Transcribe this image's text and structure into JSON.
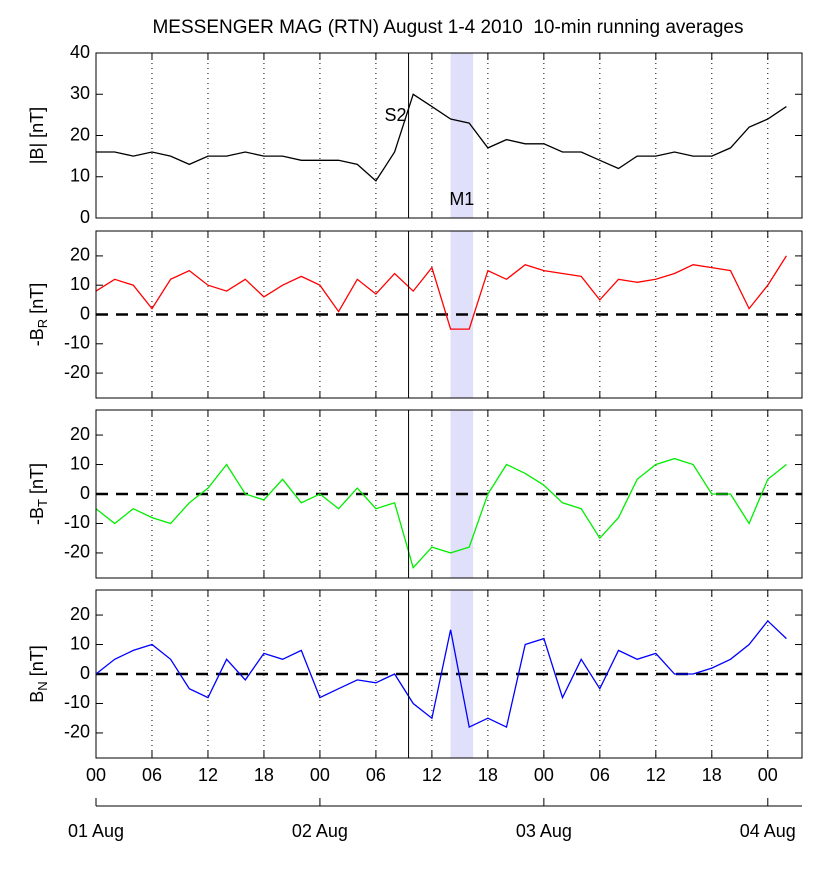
{
  "chart_data": [
    {
      "type": "line",
      "title": "MESSENGER MAG (RTN) August 1-4 2010  10-min running averages",
      "ylabel": [
        "|B| [nT]"
      ],
      "color": "#000000",
      "annotations": {
        "event": "S2",
        "interval": "M1"
      },
      "event_time": "2010-08-02T09:30",
      "interval": [
        "2010-08-02T14:00",
        "2010-08-02T16:25"
      ],
      "xlim": [
        "2010-08-01T00:00",
        "2010-08-04T03:40"
      ],
      "xticks": [
        "2010-08-01T00:00",
        "2010-08-01T06:00",
        "2010-08-01T12:00",
        "2010-08-01T18:00",
        "2010-08-02T00:00",
        "2010-08-02T06:00",
        "2010-08-02T12:00",
        "2010-08-02T18:00",
        "2010-08-03T00:00",
        "2010-08-03T06:00",
        "2010-08-03T12:00",
        "2010-08-03T18:00",
        "2010-08-04T00:00"
      ],
      "grid": true,
      "zero_line": false,
      "ylim": [
        0,
        40
      ],
      "yticks": [
        0,
        10,
        20,
        30,
        40
      ],
      "x": [
        "2010-08-01T00:00",
        "2010-08-01T02:00",
        "2010-08-01T04:00",
        "2010-08-01T06:00",
        "2010-08-01T08:00",
        "2010-08-01T10:00",
        "2010-08-01T12:00",
        "2010-08-01T14:00",
        "2010-08-01T16:00",
        "2010-08-01T18:00",
        "2010-08-01T20:00",
        "2010-08-01T22:00",
        "2010-08-02T00:00",
        "2010-08-02T02:00",
        "2010-08-02T04:00",
        "2010-08-02T06:00",
        "2010-08-02T08:00",
        "2010-08-02T10:00",
        "2010-08-02T12:00",
        "2010-08-02T14:00",
        "2010-08-02T16:00",
        "2010-08-02T18:00",
        "2010-08-02T20:00",
        "2010-08-02T22:00",
        "2010-08-03T00:00",
        "2010-08-03T02:00",
        "2010-08-03T04:00",
        "2010-08-03T06:00",
        "2010-08-03T08:00",
        "2010-08-03T10:00",
        "2010-08-03T12:00",
        "2010-08-03T14:00",
        "2010-08-03T16:00",
        "2010-08-03T18:00",
        "2010-08-03T20:00",
        "2010-08-03T22:00",
        "2010-08-04T00:00",
        "2010-08-04T02:00"
      ],
      "values": [
        16,
        16,
        15,
        16,
        15,
        13,
        15,
        15,
        16,
        15,
        15,
        14,
        14,
        14,
        13,
        9,
        16,
        30,
        27,
        24,
        23,
        17,
        19,
        18,
        18,
        16,
        16,
        14,
        12,
        15,
        15,
        16,
        15,
        15,
        17,
        22,
        24,
        27
      ]
    },
    {
      "type": "line",
      "ylabel": [
        "-B",
        "R",
        " [nT]"
      ],
      "color": "#ff0000",
      "event_time": "2010-08-02T09:30",
      "interval": [
        "2010-08-02T14:00",
        "2010-08-02T16:25"
      ],
      "xlim": [
        "2010-08-01T00:00",
        "2010-08-04T03:40"
      ],
      "xticks": [
        "2010-08-01T00:00",
        "2010-08-01T06:00",
        "2010-08-01T12:00",
        "2010-08-01T18:00",
        "2010-08-02T00:00",
        "2010-08-02T06:00",
        "2010-08-02T12:00",
        "2010-08-02T18:00",
        "2010-08-03T00:00",
        "2010-08-03T06:00",
        "2010-08-03T12:00",
        "2010-08-03T18:00",
        "2010-08-04T00:00"
      ],
      "grid": true,
      "zero_line": true,
      "ylim": [
        -28.5,
        28.5
      ],
      "yticks": [
        -20,
        -10,
        0,
        10,
        20
      ],
      "x": [
        "2010-08-01T00:00",
        "2010-08-01T02:00",
        "2010-08-01T04:00",
        "2010-08-01T06:00",
        "2010-08-01T08:00",
        "2010-08-01T10:00",
        "2010-08-01T12:00",
        "2010-08-01T14:00",
        "2010-08-01T16:00",
        "2010-08-01T18:00",
        "2010-08-01T20:00",
        "2010-08-01T22:00",
        "2010-08-02T00:00",
        "2010-08-02T02:00",
        "2010-08-02T04:00",
        "2010-08-02T06:00",
        "2010-08-02T08:00",
        "2010-08-02T10:00",
        "2010-08-02T12:00",
        "2010-08-02T14:00",
        "2010-08-02T16:00",
        "2010-08-02T18:00",
        "2010-08-02T20:00",
        "2010-08-02T22:00",
        "2010-08-03T00:00",
        "2010-08-03T02:00",
        "2010-08-03T04:00",
        "2010-08-03T06:00",
        "2010-08-03T08:00",
        "2010-08-03T10:00",
        "2010-08-03T12:00",
        "2010-08-03T14:00",
        "2010-08-03T16:00",
        "2010-08-03T18:00",
        "2010-08-03T20:00",
        "2010-08-03T22:00",
        "2010-08-04T00:00",
        "2010-08-04T02:00"
      ],
      "values": [
        8,
        12,
        10,
        2,
        12,
        15,
        10,
        8,
        12,
        6,
        10,
        13,
        10,
        1,
        12,
        7,
        14,
        8,
        16,
        -5,
        -5,
        15,
        12,
        17,
        15,
        14,
        13,
        5,
        12,
        11,
        12,
        14,
        17,
        16,
        15,
        2,
        10,
        20
      ]
    },
    {
      "type": "line",
      "ylabel": [
        "-B",
        "T",
        " [nT]"
      ],
      "color": "#00ee00",
      "event_time": "2010-08-02T09:30",
      "interval": [
        "2010-08-02T14:00",
        "2010-08-02T16:25"
      ],
      "xlim": [
        "2010-08-01T00:00",
        "2010-08-04T03:40"
      ],
      "xticks": [
        "2010-08-01T00:00",
        "2010-08-01T06:00",
        "2010-08-01T12:00",
        "2010-08-01T18:00",
        "2010-08-02T00:00",
        "2010-08-02T06:00",
        "2010-08-02T12:00",
        "2010-08-02T18:00",
        "2010-08-03T00:00",
        "2010-08-03T06:00",
        "2010-08-03T12:00",
        "2010-08-03T18:00",
        "2010-08-04T00:00"
      ],
      "grid": true,
      "zero_line": true,
      "ylim": [
        -28.5,
        28.5
      ],
      "yticks": [
        -20,
        -10,
        0,
        10,
        20
      ],
      "x": [
        "2010-08-01T00:00",
        "2010-08-01T02:00",
        "2010-08-01T04:00",
        "2010-08-01T06:00",
        "2010-08-01T08:00",
        "2010-08-01T10:00",
        "2010-08-01T12:00",
        "2010-08-01T14:00",
        "2010-08-01T16:00",
        "2010-08-01T18:00",
        "2010-08-01T20:00",
        "2010-08-01T22:00",
        "2010-08-02T00:00",
        "2010-08-02T02:00",
        "2010-08-02T04:00",
        "2010-08-02T06:00",
        "2010-08-02T08:00",
        "2010-08-02T10:00",
        "2010-08-02T12:00",
        "2010-08-02T14:00",
        "2010-08-02T16:00",
        "2010-08-02T18:00",
        "2010-08-02T20:00",
        "2010-08-02T22:00",
        "2010-08-03T00:00",
        "2010-08-03T02:00",
        "2010-08-03T04:00",
        "2010-08-03T06:00",
        "2010-08-03T08:00",
        "2010-08-03T10:00",
        "2010-08-03T12:00",
        "2010-08-03T14:00",
        "2010-08-03T16:00",
        "2010-08-03T18:00",
        "2010-08-03T20:00",
        "2010-08-03T22:00",
        "2010-08-04T00:00",
        "2010-08-04T02:00"
      ],
      "values": [
        -5,
        -10,
        -5,
        -8,
        -10,
        -3,
        2,
        10,
        0,
        -2,
        5,
        -3,
        0,
        -5,
        2,
        -5,
        -3,
        -25,
        -18,
        -20,
        -18,
        0,
        10,
        7,
        3,
        -3,
        -5,
        -15,
        -8,
        5,
        10,
        12,
        10,
        0,
        0,
        -10,
        5,
        10
      ]
    },
    {
      "type": "line",
      "ylabel": [
        "B",
        "N",
        " [nT]"
      ],
      "color": "#0000ff",
      "event_time": "2010-08-02T09:30",
      "interval": [
        "2010-08-02T14:00",
        "2010-08-02T16:25"
      ],
      "xlim": [
        "2010-08-01T00:00",
        "2010-08-04T03:40"
      ],
      "xticks": [
        {
          "value": "2010-08-01T00:00",
          "label": "00"
        },
        {
          "value": "2010-08-01T06:00",
          "label": "06"
        },
        {
          "value": "2010-08-01T12:00",
          "label": "12"
        },
        {
          "value": "2010-08-01T18:00",
          "label": "18"
        },
        {
          "value": "2010-08-02T00:00",
          "label": "00"
        },
        {
          "value": "2010-08-02T06:00",
          "label": "06"
        },
        {
          "value": "2010-08-02T12:00",
          "label": "12"
        },
        {
          "value": "2010-08-02T18:00",
          "label": "18"
        },
        {
          "value": "2010-08-03T00:00",
          "label": "00"
        },
        {
          "value": "2010-08-03T06:00",
          "label": "06"
        },
        {
          "value": "2010-08-03T12:00",
          "label": "12"
        },
        {
          "value": "2010-08-03T18:00",
          "label": "18"
        },
        {
          "value": "2010-08-04T00:00",
          "label": "00"
        }
      ],
      "x2ticks": [
        {
          "value": "2010-08-01T00:00",
          "label": "01 Aug"
        },
        {
          "value": "2010-08-02T00:00",
          "label": "02 Aug"
        },
        {
          "value": "2010-08-03T00:00",
          "label": "03 Aug"
        },
        {
          "value": "2010-08-04T00:00",
          "label": "04 Aug"
        }
      ],
      "grid": true,
      "zero_line": true,
      "ylim": [
        -28.5,
        28.5
      ],
      "yticks": [
        -20,
        -10,
        0,
        10,
        20
      ],
      "x": [
        "2010-08-01T00:00",
        "2010-08-01T02:00",
        "2010-08-01T04:00",
        "2010-08-01T06:00",
        "2010-08-01T08:00",
        "2010-08-01T10:00",
        "2010-08-01T12:00",
        "2010-08-01T14:00",
        "2010-08-01T16:00",
        "2010-08-01T18:00",
        "2010-08-01T20:00",
        "2010-08-01T22:00",
        "2010-08-02T00:00",
        "2010-08-02T02:00",
        "2010-08-02T04:00",
        "2010-08-02T06:00",
        "2010-08-02T08:00",
        "2010-08-02T10:00",
        "2010-08-02T12:00",
        "2010-08-02T14:00",
        "2010-08-02T16:00",
        "2010-08-02T18:00",
        "2010-08-02T20:00",
        "2010-08-02T22:00",
        "2010-08-03T00:00",
        "2010-08-03T02:00",
        "2010-08-03T04:00",
        "2010-08-03T06:00",
        "2010-08-03T08:00",
        "2010-08-03T10:00",
        "2010-08-03T12:00",
        "2010-08-03T14:00",
        "2010-08-03T16:00",
        "2010-08-03T18:00",
        "2010-08-03T20:00",
        "2010-08-03T22:00",
        "2010-08-04T00:00",
        "2010-08-04T02:00"
      ],
      "values": [
        0,
        5,
        8,
        10,
        5,
        -5,
        -8,
        5,
        -2,
        7,
        5,
        8,
        -8,
        -5,
        -2,
        -3,
        0,
        -10,
        -15,
        15,
        -18,
        -15,
        -18,
        10,
        12,
        -8,
        5,
        -5,
        8,
        5,
        7,
        0,
        0,
        2,
        5,
        10,
        18,
        12
      ]
    }
  ]
}
